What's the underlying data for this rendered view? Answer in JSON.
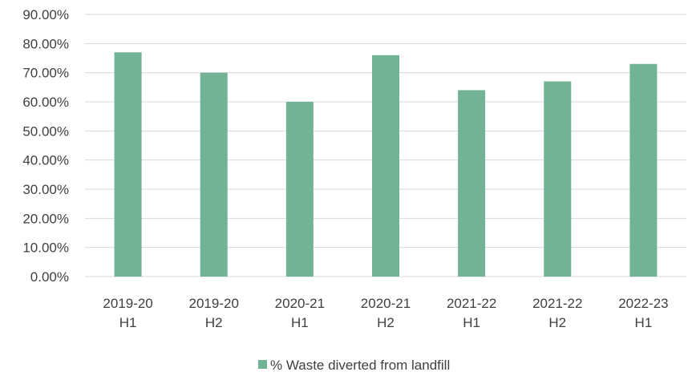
{
  "chart_data": {
    "type": "bar",
    "categories": [
      [
        "2019-20",
        "H1"
      ],
      [
        "2019-20",
        "H2"
      ],
      [
        "2020-21",
        "H1"
      ],
      [
        "2020-21",
        "H2"
      ],
      [
        "2021-22",
        "H1"
      ],
      [
        "2021-22",
        "H2"
      ],
      [
        "2022-23",
        "H1"
      ]
    ],
    "series": [
      {
        "name": "% Waste diverted from landfill",
        "values": [
          77,
          70,
          60,
          76,
          64,
          67,
          73
        ],
        "color": "#72b295"
      }
    ],
    "ylim": [
      0,
      90
    ],
    "yticks": [
      0,
      10,
      20,
      30,
      40,
      50,
      60,
      70,
      80,
      90
    ],
    "ytick_labels": [
      "0.00%",
      "10.00%",
      "20.00%",
      "30.00%",
      "40.00%",
      "50.00%",
      "60.00%",
      "70.00%",
      "80.00%",
      "90.00%"
    ],
    "grid": true,
    "legend": "bottom",
    "title": "",
    "xlabel": "",
    "ylabel": ""
  }
}
